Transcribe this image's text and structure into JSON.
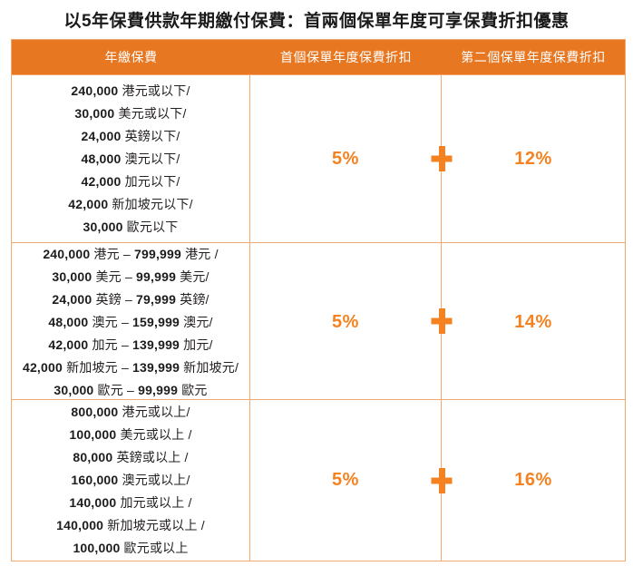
{
  "title": "以5年保費供款年期繳付保費：首兩個保單年度可享保費折扣優惠",
  "colors": {
    "header_bg": "#E87722",
    "accent": "#F58220",
    "border": "#F2A96F",
    "text": "#242021"
  },
  "table": {
    "headers": [
      "年繳保費",
      "首個保單年度保費折扣",
      "第二個保單年度保費折扣"
    ],
    "plus_symbol": "+",
    "rows": [
      {
        "premium_lines": [
          "240,000 港元或以下/",
          "30,000 美元或以下/",
          "24,000 英鎊以下/",
          "48,000 澳元以下/",
          "42,000 加元以下/",
          "42,000 新加坡元以下/",
          "30,000 歐元以下"
        ],
        "first_year_discount": "5%",
        "second_year_discount": "12%"
      },
      {
        "premium_lines": [
          "240,000 港元 – 799,999 港元 /",
          "30,000 美元 – 99,999 美元/",
          "24,000 英鎊 – 79,999 英鎊/",
          "48,000 澳元 – 159,999 澳元/",
          "42,000 加元 – 139,999 加元/",
          "42,000 新加坡元 – 139,999 新加坡元/",
          "30,000 歐元 – 99,999 歐元"
        ],
        "first_year_discount": "5%",
        "second_year_discount": "14%"
      },
      {
        "premium_lines": [
          "800,000 港元或以上/",
          "100,000 美元或以上 /",
          "80,000 英鎊或以上 /",
          "160,000 澳元或以上/",
          "140,000 加元或以上 /",
          "140,000 新加坡元或以上 /",
          "100,000 歐元或以上"
        ],
        "first_year_discount": "5%",
        "second_year_discount": "16%"
      }
    ]
  }
}
